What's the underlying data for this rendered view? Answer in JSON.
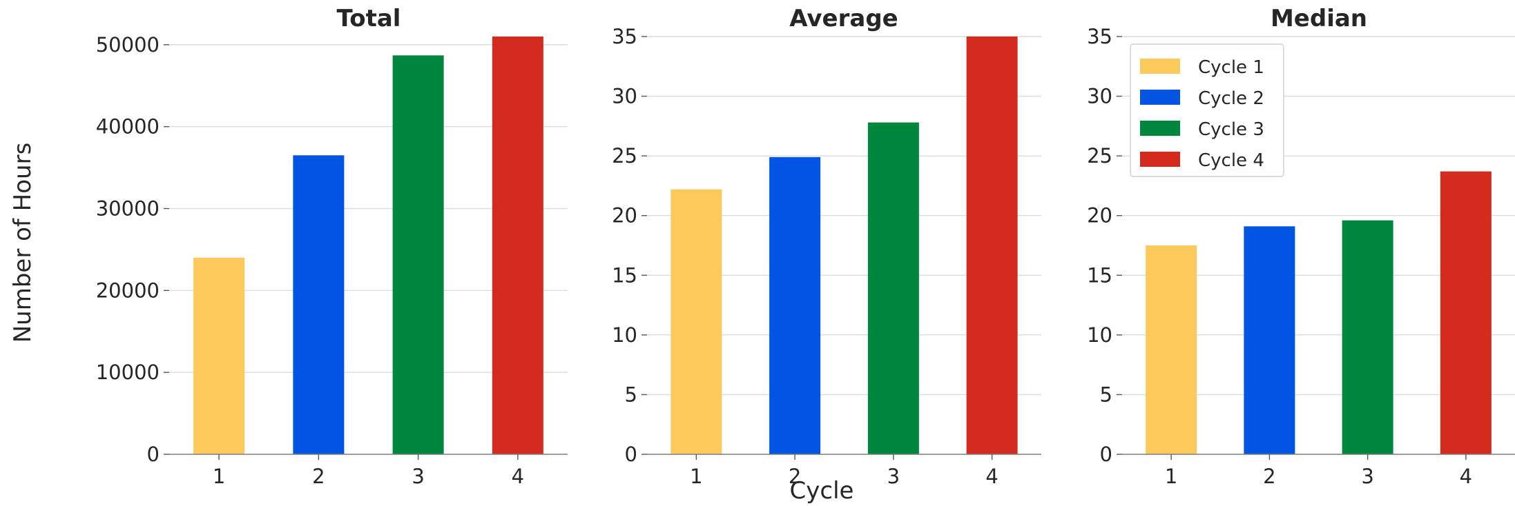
{
  "chart_data": {
    "type": "bar",
    "xlabel": "Cycle",
    "ylabel": "Number of Hours",
    "colors": [
      "#fdc95b",
      "#0254e3",
      "#00873e",
      "#d52b1e"
    ],
    "legend": {
      "placement": "top-left of Median panel",
      "entries": [
        "Cycle 1",
        "Cycle 2",
        "Cycle 3",
        "Cycle 4"
      ]
    },
    "grid": true,
    "panels": [
      {
        "title": "Total",
        "categories": [
          "1",
          "2",
          "3",
          "4"
        ],
        "values": [
          24000,
          36500,
          48700,
          51000
        ],
        "ylim": [
          0,
          51000
        ],
        "yticks": [
          0,
          10000,
          20000,
          30000,
          40000,
          50000
        ]
      },
      {
        "title": "Average",
        "categories": [
          "1",
          "2",
          "3",
          "4"
        ],
        "values": [
          22.2,
          24.9,
          27.8,
          35.0
        ],
        "ylim": [
          0,
          35
        ],
        "yticks": [
          0,
          5,
          10,
          15,
          20,
          25,
          30,
          35
        ]
      },
      {
        "title": "Median",
        "categories": [
          "1",
          "2",
          "3",
          "4"
        ],
        "values": [
          17.5,
          19.1,
          19.6,
          23.7
        ],
        "ylim": [
          0,
          35
        ],
        "yticks": [
          0,
          5,
          10,
          15,
          20,
          25,
          30,
          35
        ]
      }
    ]
  }
}
